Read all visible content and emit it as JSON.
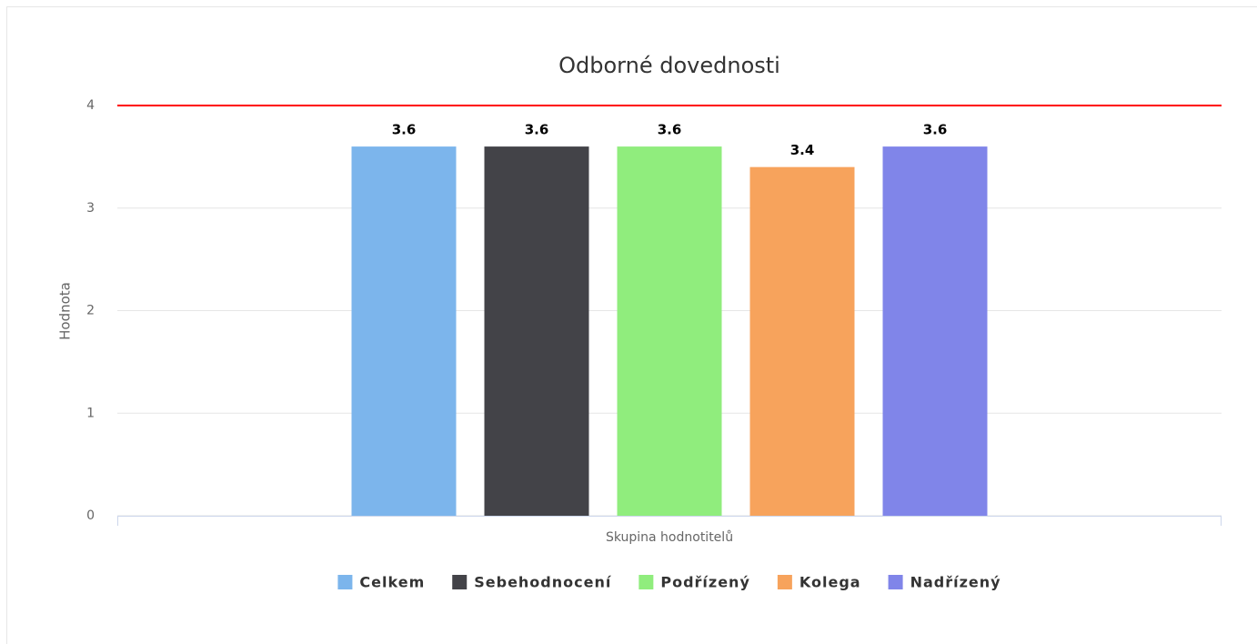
{
  "chart_data": {
    "type": "bar",
    "title": "Odborné dovednosti",
    "y_label": "Hodnota",
    "x_label": "Skupina hodnotitelů",
    "categories": [
      null
    ],
    "series": [
      {
        "name": "Celkem",
        "color": "#7cb5ec",
        "values": [
          3.6
        ]
      },
      {
        "name": "Sebehodnocení",
        "color": "#434348",
        "values": [
          3.6
        ]
      },
      {
        "name": "Podřízený",
        "color": "#90ed7d",
        "values": [
          3.6
        ]
      },
      {
        "name": "Kolega",
        "color": "#f7a35c",
        "values": [
          3.4
        ]
      },
      {
        "name": "Nadřízený",
        "color": "#8085e9",
        "values": [
          3.6
        ]
      }
    ],
    "ylim": [
      0,
      4
    ],
    "yticks": [
      0,
      1,
      2,
      3,
      4
    ],
    "grid": true,
    "plot_lines": [
      {
        "value": 4,
        "color": "#ff0000"
      }
    ],
    "legend": "bottom"
  }
}
